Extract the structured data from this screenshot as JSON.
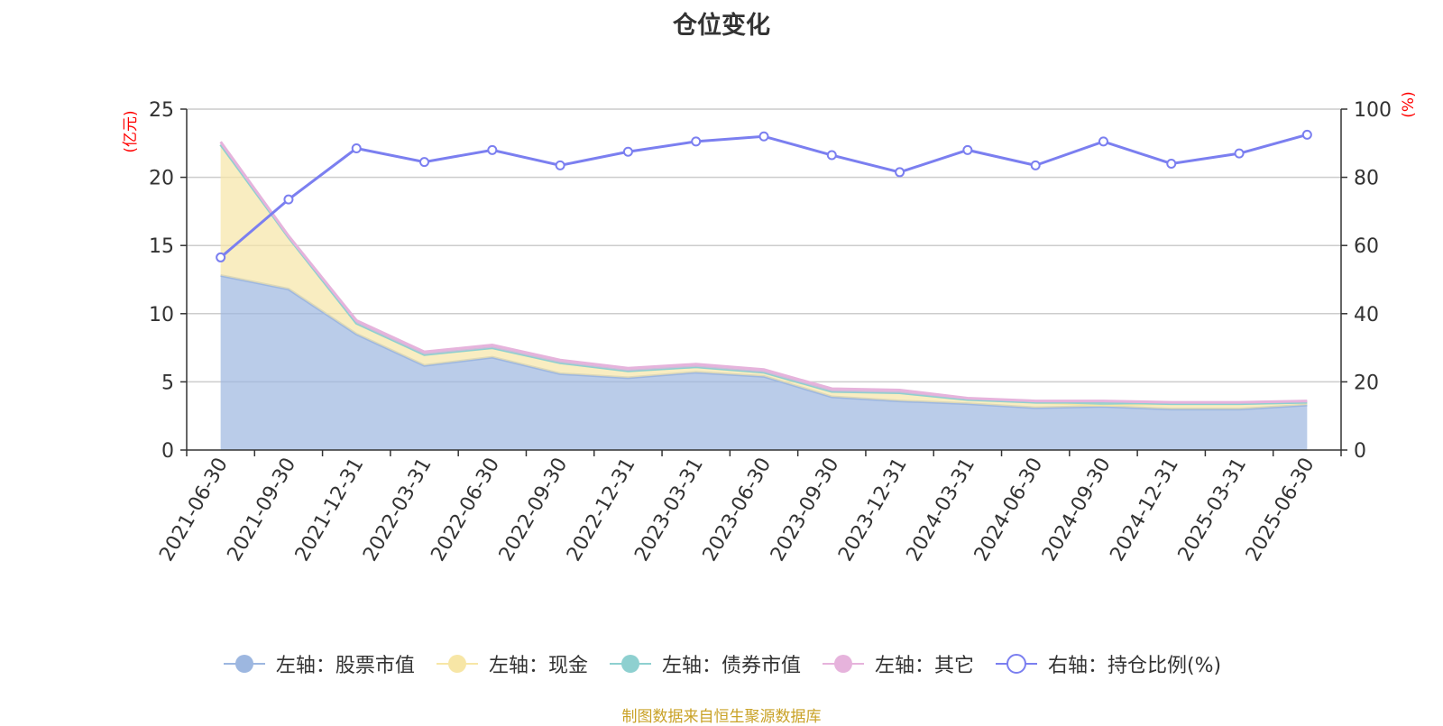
{
  "title": "仓位变化",
  "source_note": "制图数据来自恒生聚源数据库",
  "chart_data": {
    "type": "area",
    "title": "仓位变化",
    "left_axis": {
      "label": "(亿元)",
      "ylim": [
        0,
        25
      ],
      "ticks": [
        0,
        5,
        10,
        15,
        20,
        25
      ]
    },
    "right_axis": {
      "label": "(%)",
      "ylim": [
        0,
        100
      ],
      "ticks": [
        0,
        20,
        40,
        60,
        80,
        100
      ]
    },
    "grid": true,
    "legend_position": "bottom",
    "x": [
      "2021-06-30",
      "2021-09-30",
      "2021-12-31",
      "2022-03-31",
      "2022-06-30",
      "2022-09-30",
      "2022-12-31",
      "2023-03-31",
      "2023-06-30",
      "2023-09-30",
      "2023-12-31",
      "2024-03-31",
      "2024-06-30",
      "2024-09-30",
      "2024-12-31",
      "2025-03-31",
      "2025-06-30"
    ],
    "series": [
      {
        "name": "左轴：股票市值",
        "axis": "left",
        "kind": "stacked-area",
        "color": "#9db7e0",
        "values": [
          12.8,
          11.8,
          8.5,
          6.2,
          6.8,
          5.6,
          5.3,
          5.7,
          5.4,
          3.9,
          3.6,
          3.4,
          3.1,
          3.2,
          3.0,
          3.0,
          3.3
        ]
      },
      {
        "name": "左轴：现金",
        "axis": "left",
        "kind": "stacked-area",
        "color": "#f7e6a6",
        "values": [
          9.6,
          3.8,
          0.8,
          0.8,
          0.7,
          0.8,
          0.5,
          0.4,
          0.3,
          0.4,
          0.6,
          0.3,
          0.4,
          0.1,
          0.4,
          0.4,
          0.2
        ]
      },
      {
        "name": "左轴：债券市值",
        "axis": "left",
        "kind": "stacked-area",
        "color": "#8ed0d0",
        "values": [
          0,
          0,
          0,
          0,
          0,
          0,
          0,
          0,
          0,
          0,
          0,
          0,
          0,
          0.2,
          0,
          0,
          0
        ]
      },
      {
        "name": "左轴：其它",
        "axis": "left",
        "kind": "stacked-area",
        "color": "#e6b3dc",
        "values": [
          0.2,
          0.1,
          0.2,
          0.2,
          0.2,
          0.2,
          0.2,
          0.2,
          0.2,
          0.2,
          0.2,
          0.1,
          0.1,
          0.1,
          0.1,
          0.1,
          0.1
        ]
      },
      {
        "name": "右轴：持仓比例(%)",
        "axis": "right",
        "kind": "line",
        "color": "#7b7ff0",
        "values": [
          56.5,
          73.5,
          88.5,
          84.5,
          88.0,
          83.5,
          87.5,
          90.5,
          92.0,
          86.5,
          81.5,
          88.0,
          83.5,
          90.5,
          84.0,
          87.0,
          92.5
        ]
      }
    ]
  }
}
